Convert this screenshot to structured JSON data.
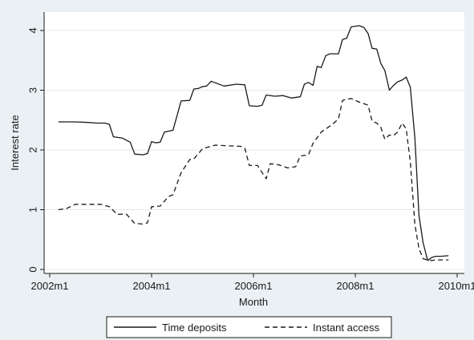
{
  "chart_data": {
    "type": "line",
    "xlabel": "Month",
    "ylabel": "Interest rate",
    "xlim": [
      2002.0,
      2010.0
    ],
    "ylim": [
      0,
      4.2
    ],
    "x_ticks": [
      {
        "value": 2002.0,
        "label": "2002m1"
      },
      {
        "value": 2004.0,
        "label": "2004m1"
      },
      {
        "value": 2006.0,
        "label": "2006m1"
      },
      {
        "value": 2008.0,
        "label": "2008m1"
      },
      {
        "value": 2010.0,
        "label": "2010m1"
      }
    ],
    "y_ticks": [
      {
        "value": 0,
        "label": "0"
      },
      {
        "value": 1,
        "label": "1"
      },
      {
        "value": 2,
        "label": "2"
      },
      {
        "value": 3,
        "label": "3"
      },
      {
        "value": 4,
        "label": "4"
      }
    ],
    "grid": true,
    "legend_position": "bottom",
    "series": [
      {
        "name": "Time deposits",
        "style": "solid",
        "color": "#1a1a1a",
        "points": [
          [
            2002.17,
            2.47
          ],
          [
            2002.5,
            2.47
          ],
          [
            2002.75,
            2.46
          ],
          [
            2002.92,
            2.45
          ],
          [
            2003.08,
            2.45
          ],
          [
            2003.17,
            2.43
          ],
          [
            2003.25,
            2.22
          ],
          [
            2003.42,
            2.2
          ],
          [
            2003.58,
            2.13
          ],
          [
            2003.67,
            1.93
          ],
          [
            2003.83,
            1.92
          ],
          [
            2003.92,
            1.94
          ],
          [
            2004.0,
            2.14
          ],
          [
            2004.08,
            2.12
          ],
          [
            2004.17,
            2.13
          ],
          [
            2004.25,
            2.3
          ],
          [
            2004.42,
            2.33
          ],
          [
            2004.58,
            2.82
          ],
          [
            2004.75,
            2.83
          ],
          [
            2004.83,
            3.02
          ],
          [
            2004.92,
            3.03
          ],
          [
            2005.0,
            3.06
          ],
          [
            2005.08,
            3.07
          ],
          [
            2005.17,
            3.15
          ],
          [
            2005.42,
            3.07
          ],
          [
            2005.67,
            3.1
          ],
          [
            2005.83,
            3.09
          ],
          [
            2005.92,
            2.74
          ],
          [
            2006.08,
            2.73
          ],
          [
            2006.17,
            2.75
          ],
          [
            2006.25,
            2.92
          ],
          [
            2006.42,
            2.9
          ],
          [
            2006.58,
            2.91
          ],
          [
            2006.75,
            2.87
          ],
          [
            2006.92,
            2.89
          ],
          [
            2007.0,
            3.1
          ],
          [
            2007.08,
            3.13
          ],
          [
            2007.17,
            3.08
          ],
          [
            2007.25,
            3.4
          ],
          [
            2007.33,
            3.38
          ],
          [
            2007.42,
            3.58
          ],
          [
            2007.5,
            3.61
          ],
          [
            2007.67,
            3.61
          ],
          [
            2007.75,
            3.85
          ],
          [
            2007.83,
            3.87
          ],
          [
            2007.92,
            4.06
          ],
          [
            2008.08,
            4.08
          ],
          [
            2008.17,
            4.05
          ],
          [
            2008.25,
            3.95
          ],
          [
            2008.33,
            3.7
          ],
          [
            2008.42,
            3.69
          ],
          [
            2008.5,
            3.45
          ],
          [
            2008.58,
            3.33
          ],
          [
            2008.67,
            3.0
          ],
          [
            2008.75,
            3.08
          ],
          [
            2008.83,
            3.14
          ],
          [
            2008.92,
            3.17
          ],
          [
            2009.0,
            3.22
          ],
          [
            2009.08,
            3.05
          ],
          [
            2009.17,
            2.2
          ],
          [
            2009.25,
            0.9
          ],
          [
            2009.33,
            0.45
          ],
          [
            2009.42,
            0.15
          ],
          [
            2009.5,
            0.2
          ],
          [
            2009.58,
            0.22
          ],
          [
            2009.67,
            0.22
          ],
          [
            2009.83,
            0.23
          ]
        ]
      },
      {
        "name": "Instant access",
        "style": "dashed",
        "color": "#1a1a1a",
        "points": [
          [
            2002.17,
            1.0
          ],
          [
            2002.33,
            1.02
          ],
          [
            2002.5,
            1.09
          ],
          [
            2002.67,
            1.09
          ],
          [
            2002.83,
            1.09
          ],
          [
            2003.0,
            1.09
          ],
          [
            2003.17,
            1.05
          ],
          [
            2003.33,
            0.92
          ],
          [
            2003.5,
            0.93
          ],
          [
            2003.67,
            0.77
          ],
          [
            2003.83,
            0.76
          ],
          [
            2003.92,
            0.78
          ],
          [
            2004.0,
            1.05
          ],
          [
            2004.17,
            1.06
          ],
          [
            2004.33,
            1.22
          ],
          [
            2004.42,
            1.25
          ],
          [
            2004.58,
            1.62
          ],
          [
            2004.75,
            1.84
          ],
          [
            2004.83,
            1.85
          ],
          [
            2005.0,
            2.02
          ],
          [
            2005.08,
            2.04
          ],
          [
            2005.25,
            2.08
          ],
          [
            2005.5,
            2.07
          ],
          [
            2005.75,
            2.06
          ],
          [
            2005.83,
            2.03
          ],
          [
            2005.92,
            1.74
          ],
          [
            2006.08,
            1.74
          ],
          [
            2006.17,
            1.62
          ],
          [
            2006.25,
            1.52
          ],
          [
            2006.33,
            1.77
          ],
          [
            2006.5,
            1.75
          ],
          [
            2006.67,
            1.7
          ],
          [
            2006.83,
            1.72
          ],
          [
            2006.92,
            1.9
          ],
          [
            2007.08,
            1.92
          ],
          [
            2007.17,
            2.11
          ],
          [
            2007.33,
            2.3
          ],
          [
            2007.42,
            2.35
          ],
          [
            2007.58,
            2.45
          ],
          [
            2007.67,
            2.52
          ],
          [
            2007.75,
            2.83
          ],
          [
            2007.83,
            2.85
          ],
          [
            2007.92,
            2.86
          ],
          [
            2008.08,
            2.8
          ],
          [
            2008.25,
            2.75
          ],
          [
            2008.33,
            2.48
          ],
          [
            2008.42,
            2.45
          ],
          [
            2008.5,
            2.38
          ],
          [
            2008.58,
            2.18
          ],
          [
            2008.67,
            2.25
          ],
          [
            2008.75,
            2.24
          ],
          [
            2008.83,
            2.3
          ],
          [
            2008.92,
            2.45
          ],
          [
            2009.0,
            2.35
          ],
          [
            2009.08,
            1.8
          ],
          [
            2009.17,
            0.75
          ],
          [
            2009.25,
            0.35
          ],
          [
            2009.33,
            0.18
          ],
          [
            2009.42,
            0.16
          ],
          [
            2009.5,
            0.15
          ],
          [
            2009.58,
            0.16
          ],
          [
            2009.67,
            0.16
          ],
          [
            2009.83,
            0.16
          ]
        ]
      }
    ]
  }
}
